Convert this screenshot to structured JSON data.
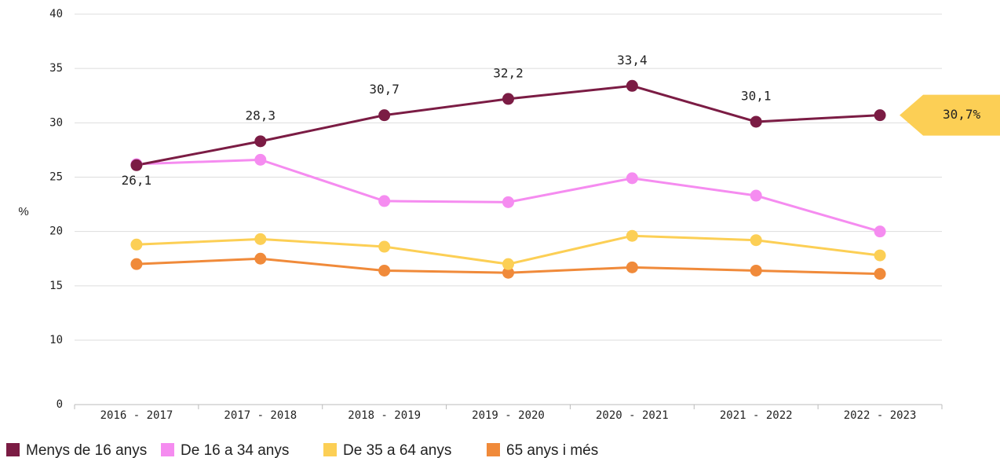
{
  "chart_data": {
    "type": "line",
    "y_label": "%",
    "categories": [
      "2016 - 2017",
      "2017 - 2018",
      "2018 - 2019",
      "2019 - 2020",
      "2020 - 2021",
      "2021 - 2022",
      "2022 - 2023"
    ],
    "series": [
      {
        "name": "Menys de 16 anys",
        "color": "#7b1c44",
        "values": [
          26.1,
          28.3,
          30.7,
          32.2,
          33.4,
          30.1,
          30.7
        ],
        "value_labels": [
          "26,1",
          "28,3",
          "30,7",
          "32,2",
          "33,4",
          "30,1",
          "30,7%"
        ]
      },
      {
        "name": "De 16 a 34 anys",
        "color": "#f58cf0",
        "values": [
          26.2,
          26.6,
          22.8,
          22.7,
          24.9,
          23.3,
          20.0
        ]
      },
      {
        "name": "De 35 a 64 anys",
        "color": "#fccf55",
        "values": [
          18.8,
          19.3,
          18.6,
          17.0,
          19.6,
          19.2,
          17.8
        ]
      },
      {
        "name": "65 anys i més",
        "color": "#f08a3a",
        "values": [
          17.0,
          17.5,
          16.4,
          16.2,
          16.7,
          16.4,
          16.1
        ]
      }
    ],
    "ylim": [
      0,
      40
    ],
    "yticks": [
      0,
      10,
      15,
      20,
      25,
      30,
      35,
      40
    ],
    "grid": true,
    "legend": "bottom-left",
    "callout_color": "#fccf55"
  }
}
